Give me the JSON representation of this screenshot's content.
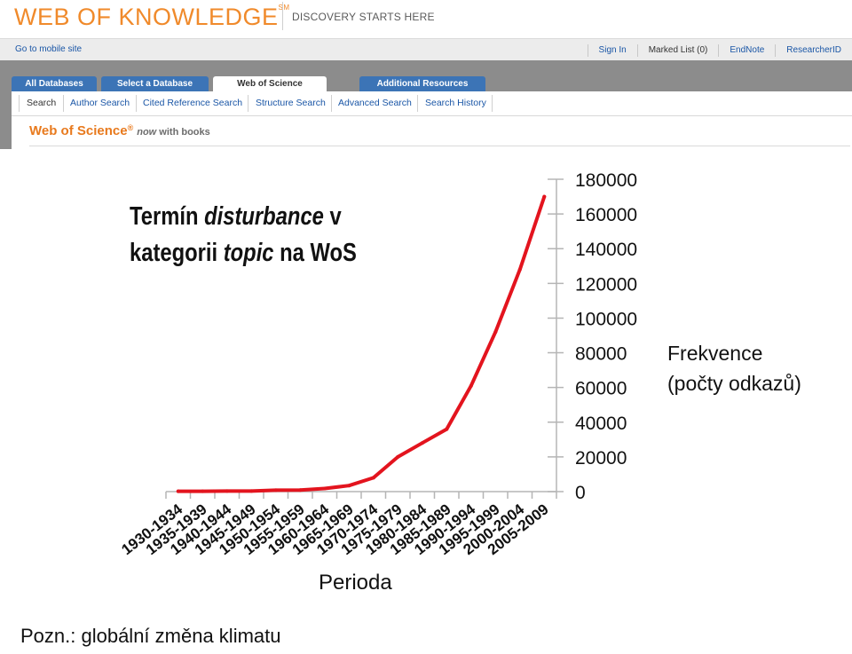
{
  "header": {
    "logo_text": "WEB OF KNOWLEDGE",
    "logo_mark": "SM",
    "tagline": "DISCOVERY STARTS HERE",
    "mobile_link": "Go to mobile site",
    "top_links": [
      "Sign In",
      "Marked List (0)",
      "EndNote",
      "ResearcherID"
    ],
    "tabs": [
      "All Databases",
      "Select a Database",
      "Web of Science",
      "Additional Resources"
    ],
    "active_tab": "Web of Science",
    "subnav": [
      "Search",
      "Author Search",
      "Cited Reference Search",
      "Structure Search",
      "Advanced Search",
      "Search History"
    ],
    "wos_title": "Web of Science",
    "wos_reg": "®",
    "wos_now": "now",
    "wos_with_books": "with books",
    "colors": {
      "logo": "#f08a2b",
      "tab_blue": "#3c74b6",
      "tabbar_grey": "#8c8c8c",
      "link": "#1a56a6",
      "wos_orange": "#e87a1e"
    }
  },
  "chart_title": {
    "line1_a": "Termín ",
    "line1_b": "disturbance",
    "line1_c": " v",
    "line2_a": "kategorii ",
    "line2_b": "topic",
    "line2_c": " na WoS"
  },
  "chart_data": {
    "type": "line",
    "title": "Termín disturbance v kategorii topic na WoS",
    "xlabel": "Perioda",
    "ylabel": "Frekvence (počty odkazů)",
    "ylabel_lines": [
      "Frekvence",
      "(počty odkazů)"
    ],
    "y_axis_side": "right",
    "ylim": [
      0,
      180000
    ],
    "yticks": [
      0,
      20000,
      40000,
      60000,
      80000,
      100000,
      120000,
      140000,
      160000,
      180000
    ],
    "grid": false,
    "line_color": "#e3141e",
    "categories": [
      "1930-1934",
      "1935-1939",
      "1940-1944",
      "1945-1949",
      "1950-1954",
      "1955-1959",
      "1960-1964",
      "1965-1969",
      "1970-1974",
      "1975-1979",
      "1980-1984",
      "1985-1989",
      "1990-1994",
      "1995-1999",
      "2000-2004",
      "2005-2009"
    ],
    "values": [
      200,
      200,
      300,
      300,
      800,
      900,
      1800,
      3500,
      8000,
      20000,
      28000,
      36000,
      61000,
      92000,
      128000,
      170000
    ]
  },
  "note": "Pozn.: globální změna klimatu"
}
